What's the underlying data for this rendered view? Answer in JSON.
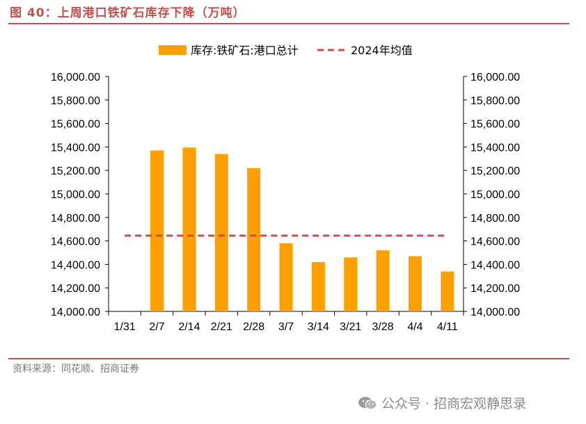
{
  "header": {
    "title": "图 40：上周港口铁矿石库存下降（万吨）"
  },
  "footer": {
    "source": "资料来源：同花顺、招商证券",
    "watermark": "公众号 · 招商宏观静思录",
    "watermark_icon": "wechat-icon"
  },
  "colors": {
    "bar": "#ffa000",
    "avg_line": "#c0504d",
    "accent": "#c0504d"
  },
  "chart_data": {
    "type": "bar",
    "categories": [
      "1/31",
      "2/7",
      "2/14",
      "2/21",
      "2/28",
      "3/7",
      "3/14",
      "3/21",
      "3/28",
      "4/4",
      "4/11"
    ],
    "series": [
      {
        "name": "库存:铁矿石:港口总计",
        "type": "bar",
        "values": [
          null,
          15370,
          15395,
          15340,
          15220,
          14580,
          14420,
          14460,
          14520,
          14470,
          14340
        ]
      },
      {
        "name": "2024年均值",
        "type": "line",
        "style": "dashed",
        "values": [
          14645,
          14645,
          14645,
          14645,
          14645,
          14645,
          14645,
          14645,
          14645,
          14645,
          14645
        ]
      }
    ],
    "ylim": [
      14000,
      16000
    ],
    "yticks": [
      "14,000.00",
      "14,200.00",
      "14,400.00",
      "14,600.00",
      "14,800.00",
      "15,000.00",
      "15,200.00",
      "15,400.00",
      "15,600.00",
      "15,800.00",
      "16,000.00"
    ],
    "y2ticks": [
      "14,000.00",
      "14,200.00",
      "14,400.00",
      "14,600.00",
      "14,800.00",
      "15,000.00",
      "15,200.00",
      "15,400.00",
      "15,600.00",
      "15,800.00",
      "16,000.00"
    ],
    "legend_position": "top",
    "grid": false
  }
}
